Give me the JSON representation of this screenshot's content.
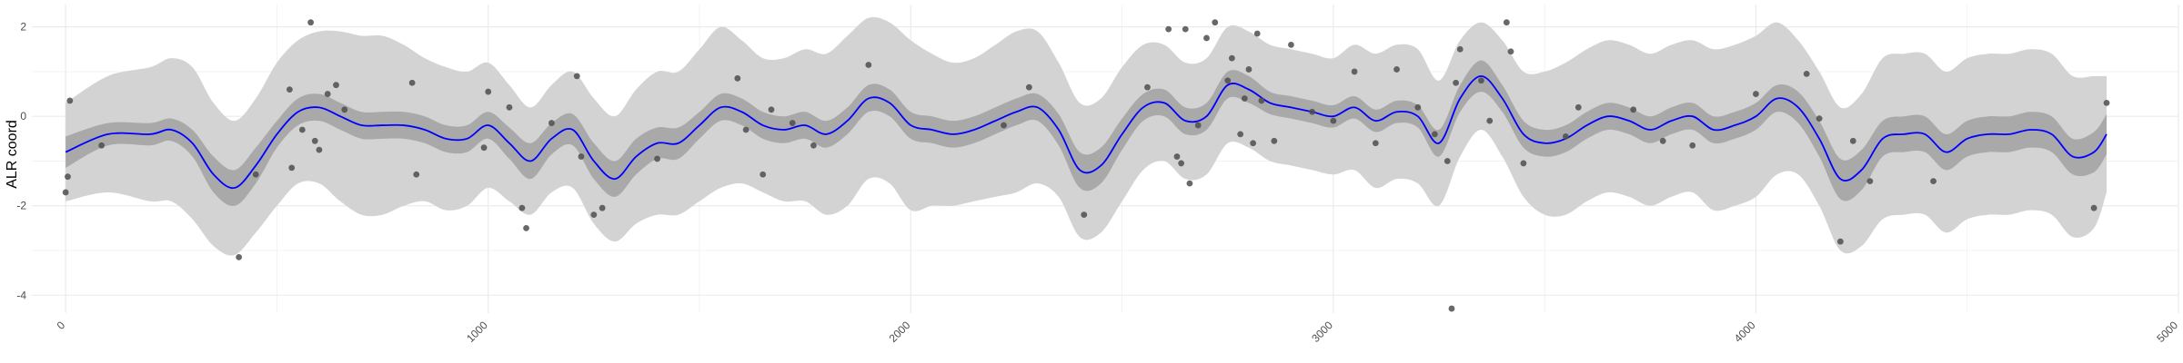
{
  "chart_data": {
    "type": "line",
    "ylabel": "ALR coord",
    "xlabel": "",
    "title": "",
    "xlim": [
      -80,
      5000
    ],
    "ylim": [
      -4.4,
      2.5
    ],
    "x_ticks": [
      0,
      1000,
      2000,
      3000,
      4000,
      5000
    ],
    "x_tick_labels": [
      "0",
      "1000",
      "2000",
      "3000",
      "4000",
      "5000"
    ],
    "y_ticks": [
      -4,
      -2,
      0,
      2
    ],
    "y_tick_labels": [
      "-4",
      "-2",
      "0",
      "2"
    ],
    "grid": true,
    "colors": {
      "mean_line": "#0000ff",
      "inner_band": "#a9a9a9",
      "outer_band": "#d3d3d3",
      "points": "#4d4d4d",
      "grid": "#ebebeb"
    },
    "mean": {
      "x": [
        0,
        100,
        200,
        250,
        300,
        350,
        400,
        450,
        500,
        550,
        600,
        650,
        700,
        750,
        800,
        850,
        900,
        950,
        1000,
        1050,
        1100,
        1150,
        1200,
        1250,
        1300,
        1350,
        1400,
        1450,
        1500,
        1550,
        1600,
        1650,
        1700,
        1750,
        1800,
        1850,
        1900,
        1950,
        2000,
        2050,
        2100,
        2150,
        2200,
        2250,
        2300,
        2350,
        2400,
        2450,
        2500,
        2550,
        2600,
        2650,
        2700,
        2750,
        2800,
        2850,
        2900,
        2950,
        3000,
        3050,
        3100,
        3150,
        3200,
        3250,
        3300,
        3350,
        3400,
        3450,
        3500,
        3550,
        3600,
        3650,
        3700,
        3750,
        3800,
        3850,
        3900,
        3950,
        4000,
        4050,
        4100,
        4150,
        4200,
        4250,
        4300,
        4350,
        4400,
        4450,
        4500,
        4550,
        4600,
        4650,
        4700,
        4750,
        4800,
        4830
      ],
      "y": [
        -0.8,
        -0.4,
        -0.4,
        -0.3,
        -0.6,
        -1.3,
        -1.6,
        -1.1,
        -0.4,
        0.1,
        0.2,
        0.0,
        -0.2,
        -0.2,
        -0.2,
        -0.3,
        -0.5,
        -0.5,
        -0.2,
        -0.6,
        -1.0,
        -0.5,
        -0.3,
        -1.0,
        -1.4,
        -0.9,
        -0.6,
        -0.6,
        -0.2,
        0.2,
        0.1,
        -0.2,
        -0.3,
        -0.2,
        -0.4,
        -0.1,
        0.4,
        0.3,
        -0.2,
        -0.3,
        -0.4,
        -0.3,
        -0.1,
        0.1,
        0.2,
        -0.3,
        -1.2,
        -1.1,
        -0.4,
        0.2,
        0.3,
        -0.1,
        0.0,
        0.7,
        0.6,
        0.3,
        0.2,
        0.1,
        0.0,
        0.2,
        -0.1,
        0.1,
        0.0,
        -0.6,
        0.4,
        0.9,
        0.4,
        -0.4,
        -0.6,
        -0.5,
        -0.2,
        0.0,
        -0.1,
        -0.3,
        -0.1,
        0.0,
        -0.3,
        -0.2,
        0.0,
        0.4,
        0.2,
        -0.5,
        -1.4,
        -1.2,
        -0.5,
        -0.4,
        -0.4,
        -0.8,
        -0.5,
        -0.4,
        -0.4,
        -0.3,
        -0.4,
        -0.9,
        -0.8,
        -0.4
      ],
      "inner_half_width": [
        0.35,
        0.25,
        0.25,
        0.25,
        0.3,
        0.4,
        0.4,
        0.4,
        0.3,
        0.3,
        0.3,
        0.3,
        0.3,
        0.3,
        0.3,
        0.3,
        0.3,
        0.3,
        0.3,
        0.35,
        0.4,
        0.35,
        0.35,
        0.4,
        0.4,
        0.4,
        0.35,
        0.35,
        0.3,
        0.3,
        0.3,
        0.3,
        0.3,
        0.3,
        0.3,
        0.3,
        0.3,
        0.3,
        0.3,
        0.3,
        0.3,
        0.3,
        0.3,
        0.3,
        0.3,
        0.35,
        0.4,
        0.4,
        0.35,
        0.3,
        0.3,
        0.3,
        0.3,
        0.3,
        0.3,
        0.25,
        0.25,
        0.25,
        0.25,
        0.25,
        0.25,
        0.25,
        0.25,
        0.3,
        0.3,
        0.35,
        0.3,
        0.3,
        0.3,
        0.3,
        0.3,
        0.3,
        0.3,
        0.3,
        0.3,
        0.3,
        0.3,
        0.3,
        0.3,
        0.3,
        0.35,
        0.4,
        0.45,
        0.45,
        0.4,
        0.4,
        0.4,
        0.4,
        0.4,
        0.4,
        0.4,
        0.4,
        0.4,
        0.4,
        0.45,
        0.45
      ],
      "outer_half_width": [
        1.1,
        1.3,
        1.5,
        1.6,
        1.7,
        1.6,
        1.5,
        1.5,
        1.6,
        1.6,
        1.7,
        1.9,
        2.0,
        2.0,
        1.8,
        1.6,
        1.6,
        1.5,
        1.4,
        1.3,
        1.2,
        1.2,
        1.3,
        1.4,
        1.4,
        1.5,
        1.6,
        1.6,
        1.7,
        1.8,
        1.6,
        1.5,
        1.6,
        1.7,
        1.8,
        1.9,
        1.8,
        1.8,
        1.9,
        1.7,
        1.6,
        1.6,
        1.7,
        1.8,
        1.7,
        1.5,
        1.5,
        1.5,
        1.5,
        1.4,
        1.3,
        1.3,
        1.3,
        1.3,
        1.3,
        1.3,
        1.3,
        1.3,
        1.3,
        1.4,
        1.5,
        1.5,
        1.5,
        1.4,
        1.3,
        1.2,
        1.3,
        1.4,
        1.6,
        1.7,
        1.7,
        1.7,
        1.7,
        1.7,
        1.7,
        1.7,
        1.8,
        1.8,
        1.8,
        1.7,
        1.5,
        1.5,
        1.6,
        1.7,
        1.8,
        1.8,
        1.8,
        1.8,
        1.8,
        1.8,
        1.8,
        1.8,
        1.8,
        1.8,
        1.7,
        1.3
      ]
    },
    "points": {
      "x": [
        0,
        5,
        10,
        85,
        410,
        450,
        530,
        535,
        560,
        580,
        590,
        600,
        620,
        640,
        660,
        820,
        830,
        990,
        1000,
        1050,
        1080,
        1090,
        1150,
        1210,
        1220,
        1250,
        1270,
        1400,
        1590,
        1610,
        1650,
        1670,
        1720,
        1770,
        1900,
        2220,
        2280,
        2410,
        2560,
        2610,
        2630,
        2640,
        2650,
        2660,
        2680,
        2700,
        2720,
        2750,
        2760,
        2780,
        2790,
        2800,
        2810,
        2820,
        2830,
        2860,
        2900,
        2950,
        3000,
        3050,
        3100,
        3150,
        3200,
        3240,
        3270,
        3280,
        3290,
        3300,
        3350,
        3370,
        3410,
        3420,
        3450,
        3550,
        3580,
        3710,
        3780,
        3850,
        4000,
        4120,
        4150,
        4200,
        4230,
        4270,
        4420,
        4800,
        4830
      ],
      "y": [
        -1.7,
        -1.35,
        0.35,
        -0.65,
        -3.15,
        -1.3,
        0.6,
        -1.15,
        -0.3,
        2.1,
        -0.55,
        -0.75,
        0.5,
        0.7,
        0.15,
        0.75,
        -1.3,
        -0.7,
        0.55,
        0.2,
        -2.05,
        -2.5,
        -0.15,
        0.9,
        -0.9,
        -2.2,
        -2.05,
        -0.95,
        0.85,
        -0.3,
        -1.3,
        0.15,
        -0.15,
        -0.65,
        1.15,
        -0.2,
        0.65,
        -2.2,
        0.65,
        1.95,
        -0.9,
        -1.05,
        1.95,
        -1.5,
        -0.2,
        1.75,
        2.1,
        0.8,
        1.3,
        -0.4,
        0.4,
        1.05,
        -0.6,
        1.85,
        0.35,
        -0.55,
        1.6,
        0.1,
        -0.1,
        1.0,
        -0.6,
        1.05,
        0.2,
        -0.4,
        -1.0,
        -4.3,
        0.75,
        1.5,
        0.8,
        -0.1,
        2.1,
        1.45,
        -1.05,
        -0.45,
        0.2,
        0.15,
        -0.55,
        -0.65,
        0.5,
        0.95,
        -0.05,
        -2.8,
        -0.55,
        -1.45,
        -1.45,
        -2.05,
        0.3
      ]
    }
  }
}
